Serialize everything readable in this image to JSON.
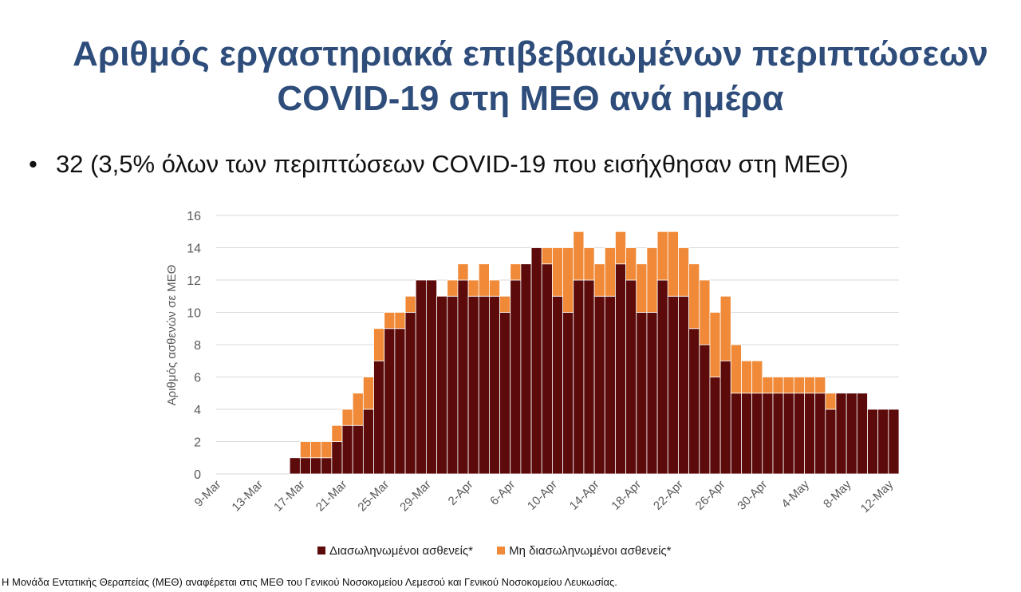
{
  "title": {
    "line1": "Αριθμός εργαστηριακά επιβεβαιωμένων περιπτώσεων",
    "line2": "COVID-19 στη ΜΕΘ ανά ημέρα"
  },
  "bullet": {
    "symbol": "•",
    "text": "32 (3,5% όλων των περιπτώσεων COVID-19 που εισήχθησαν στη ΜΕΘ)"
  },
  "footnote": "Η Μονάδα Εντατικής Θεραπείας (ΜΕΘ) αναφέρεται στις ΜΕΘ του Γενικού Νοσοκομείου Λεμεσού και Γενικού Νοσοκομείου Λευκωσίας.",
  "chart_data": {
    "type": "bar",
    "stacked": true,
    "ylabel": "Αριθμός ασθενών σε ΜΕΘ",
    "ylim": [
      0,
      16
    ],
    "yticks": [
      0,
      2,
      4,
      6,
      8,
      10,
      12,
      14,
      16
    ],
    "grid": true,
    "legend_position": "bottom",
    "x_tick_labels": [
      "9-Mar",
      "13-Mar",
      "17-Mar",
      "21-Mar",
      "25-Mar",
      "29-Mar",
      "2-Apr",
      "6-Apr",
      "10-Apr",
      "14-Apr",
      "18-Apr",
      "22-Apr",
      "26-Apr",
      "30-Apr",
      "4-May",
      "8-May",
      "12-May"
    ],
    "categories": [
      "9-Mar",
      "10-Mar",
      "11-Mar",
      "12-Mar",
      "13-Mar",
      "14-Mar",
      "15-Mar",
      "16-Mar",
      "17-Mar",
      "18-Mar",
      "19-Mar",
      "20-Mar",
      "21-Mar",
      "22-Mar",
      "23-Mar",
      "24-Mar",
      "25-Mar",
      "26-Mar",
      "27-Mar",
      "28-Mar",
      "29-Mar",
      "30-Mar",
      "31-Mar",
      "1-Apr",
      "2-Apr",
      "3-Apr",
      "4-Apr",
      "5-Apr",
      "6-Apr",
      "7-Apr",
      "8-Apr",
      "9-Apr",
      "10-Apr",
      "11-Apr",
      "12-Apr",
      "13-Apr",
      "14-Apr",
      "15-Apr",
      "16-Apr",
      "17-Apr",
      "18-Apr",
      "19-Apr",
      "20-Apr",
      "21-Apr",
      "22-Apr",
      "23-Apr",
      "24-Apr",
      "25-Apr",
      "26-Apr",
      "27-Apr",
      "28-Apr",
      "29-Apr",
      "30-Apr",
      "1-May",
      "2-May",
      "3-May",
      "4-May",
      "5-May",
      "6-May",
      "7-May",
      "8-May",
      "9-May",
      "10-May",
      "11-May",
      "12-May"
    ],
    "series": [
      {
        "name": "Διασωληνωμένοι ασθενείς*",
        "color": "#5c0a0a",
        "values": [
          0,
          0,
          0,
          0,
          0,
          0,
          0,
          1,
          1,
          1,
          1,
          2,
          3,
          3,
          4,
          7,
          9,
          9,
          10,
          12,
          12,
          11,
          11,
          12,
          11,
          11,
          11,
          10,
          12,
          13,
          14,
          13,
          11,
          10,
          12,
          12,
          11,
          11,
          13,
          12,
          10,
          10,
          12,
          11,
          11,
          9,
          8,
          6,
          7,
          5,
          5,
          5,
          5,
          5,
          5,
          5,
          5,
          5,
          4,
          5,
          5,
          5,
          4,
          4,
          4
        ]
      },
      {
        "name": "Μη διασωληνωμένοι ασθενείς*",
        "color": "#f08a38",
        "values": [
          0,
          0,
          0,
          0,
          0,
          0,
          0,
          0,
          1,
          1,
          1,
          1,
          1,
          2,
          2,
          2,
          1,
          1,
          1,
          0,
          0,
          0,
          1,
          1,
          1,
          2,
          1,
          1,
          1,
          0,
          0,
          1,
          3,
          4,
          3,
          2,
          2,
          3,
          2,
          2,
          3,
          4,
          3,
          4,
          3,
          4,
          4,
          4,
          4,
          3,
          2,
          2,
          1,
          1,
          1,
          1,
          1,
          1,
          1,
          0,
          0,
          0,
          0,
          0,
          0
        ]
      }
    ]
  }
}
